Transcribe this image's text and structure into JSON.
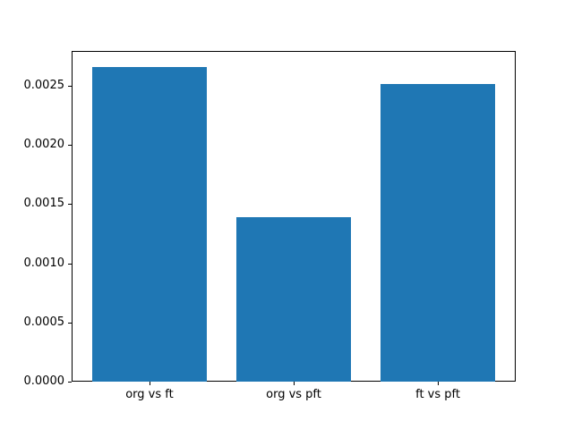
{
  "figure": {
    "background": "#ffffff",
    "title": ""
  },
  "chart_data": {
    "type": "bar",
    "title": "",
    "xlabel": "",
    "ylabel": "",
    "categories": [
      "org vs ft",
      "org vs pft",
      "ft vs pft"
    ],
    "values": [
      0.00266,
      0.00139,
      0.00251
    ],
    "bar_color": "#1f77b4",
    "axis_color": "#000000",
    "text_color": "#000000",
    "ylim": [
      0,
      0.002793
    ],
    "bar_width_fraction": 0.8,
    "grid": false,
    "legend": null,
    "yticks": {
      "values": [
        0.0,
        0.0005,
        0.001,
        0.0015,
        0.002,
        0.0025
      ],
      "labels": [
        "0.0000",
        "0.0005",
        "0.0010",
        "0.0015",
        "0.0020",
        "0.0025"
      ]
    }
  }
}
